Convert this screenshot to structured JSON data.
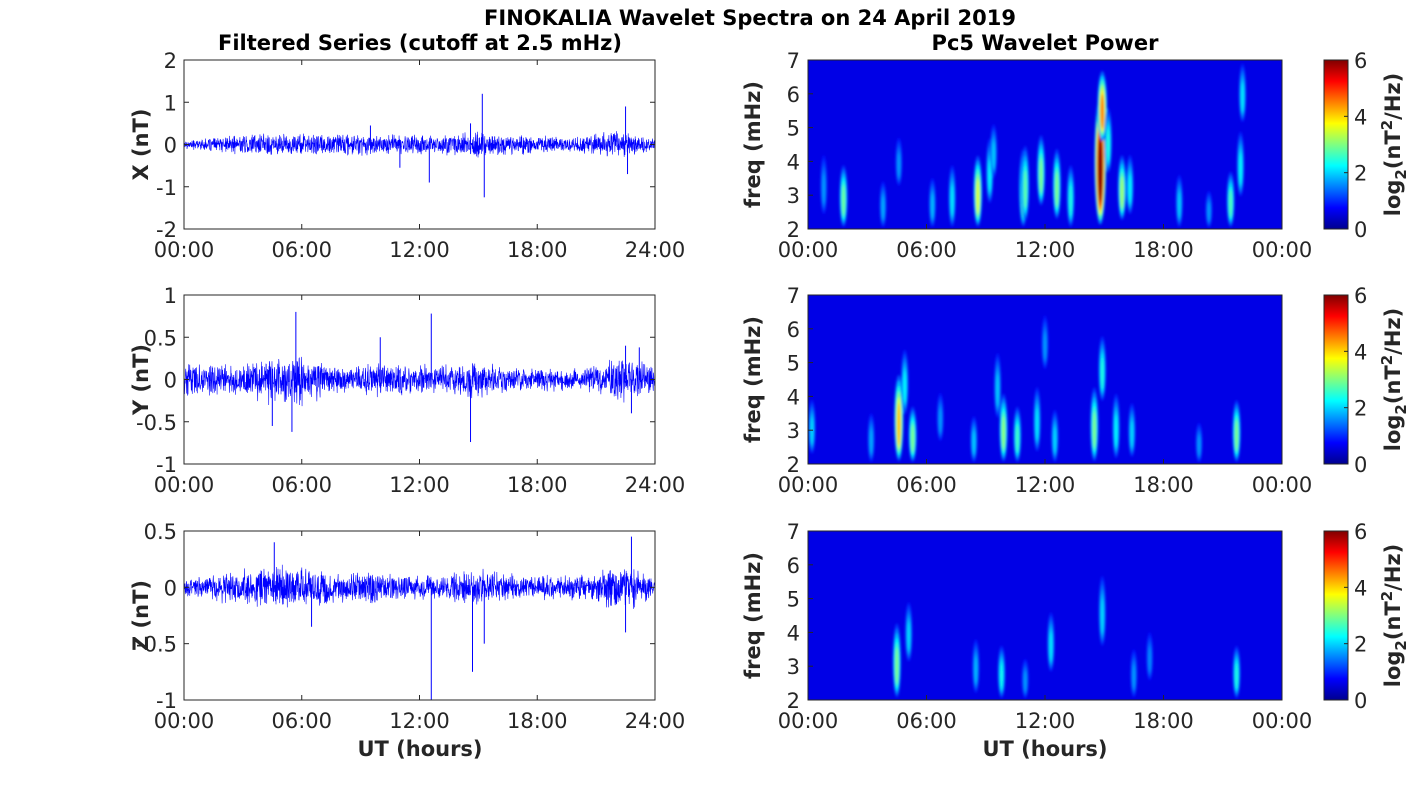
{
  "figure": {
    "title": "FINOKALIA Wavelet Spectra on 24 April 2019",
    "left_title": "Filtered Series (cutoff at 2.5 mHz)",
    "right_title": "Pc5 Wavelet Power",
    "xlabel": "UT (hours)"
  },
  "chart_data": [
    {
      "type": "line",
      "panel": "X",
      "ylabel": "X (nT)",
      "xlim": [
        0,
        24
      ],
      "ylim": [
        -2,
        2
      ],
      "x_ticks": [
        "00:00",
        "06:00",
        "12:00",
        "18:00",
        "24:00"
      ],
      "y_ticks": [
        "-2",
        "-1",
        "0",
        "1",
        "2"
      ],
      "y_tick_values": [
        -2,
        -1,
        0,
        1,
        2
      ],
      "color": "#0000ff",
      "envelope": [
        [
          0,
          0.12
        ],
        [
          1,
          0.15
        ],
        [
          2,
          0.2
        ],
        [
          3,
          0.28
        ],
        [
          4,
          0.3
        ],
        [
          5,
          0.3
        ],
        [
          6,
          0.3
        ],
        [
          7,
          0.28
        ],
        [
          8,
          0.3
        ],
        [
          9,
          0.3
        ],
        [
          10,
          0.28
        ],
        [
          11,
          0.26
        ],
        [
          12,
          0.25
        ],
        [
          13,
          0.25
        ],
        [
          14,
          0.3
        ],
        [
          15,
          0.35
        ],
        [
          16,
          0.3
        ],
        [
          17,
          0.25
        ],
        [
          18,
          0.22
        ],
        [
          19,
          0.2
        ],
        [
          20,
          0.22
        ],
        [
          21,
          0.28
        ],
        [
          22,
          0.35
        ],
        [
          23,
          0.3
        ],
        [
          24,
          0.15
        ]
      ],
      "spikes": [
        [
          15.2,
          1.2
        ],
        [
          15.3,
          -1.25
        ],
        [
          12.5,
          -0.9
        ],
        [
          22.5,
          0.9
        ],
        [
          22.6,
          -0.7
        ],
        [
          14.6,
          0.5
        ],
        [
          11.0,
          -0.55
        ],
        [
          9.5,
          0.45
        ]
      ]
    },
    {
      "type": "line",
      "panel": "Y",
      "ylabel": "Y (nT)",
      "xlim": [
        0,
        24
      ],
      "ylim": [
        -1,
        1
      ],
      "x_ticks": [
        "00:00",
        "06:00",
        "12:00",
        "18:00",
        "24:00"
      ],
      "y_ticks": [
        "-1",
        "-0.5",
        "0",
        "0.5",
        "1"
      ],
      "y_tick_values": [
        -1,
        -0.5,
        0,
        0.5,
        1
      ],
      "color": "#0000ff",
      "envelope": [
        [
          0,
          0.2
        ],
        [
          1,
          0.2
        ],
        [
          2,
          0.2
        ],
        [
          3,
          0.2
        ],
        [
          4,
          0.3
        ],
        [
          5,
          0.4
        ],
        [
          6,
          0.35
        ],
        [
          7,
          0.25
        ],
        [
          8,
          0.18
        ],
        [
          9,
          0.2
        ],
        [
          10,
          0.25
        ],
        [
          11,
          0.22
        ],
        [
          12,
          0.2
        ],
        [
          13,
          0.18
        ],
        [
          14,
          0.2
        ],
        [
          15,
          0.25
        ],
        [
          16,
          0.2
        ],
        [
          17,
          0.15
        ],
        [
          18,
          0.15
        ],
        [
          19,
          0.15
        ],
        [
          20,
          0.15
        ],
        [
          21,
          0.18
        ],
        [
          22,
          0.3
        ],
        [
          23,
          0.25
        ],
        [
          24,
          0.15
        ]
      ],
      "spikes": [
        [
          5.7,
          0.8
        ],
        [
          12.6,
          0.78
        ],
        [
          14.6,
          -0.74
        ],
        [
          5.5,
          -0.62
        ],
        [
          4.5,
          -0.55
        ],
        [
          10.0,
          0.5
        ],
        [
          22.5,
          0.4
        ],
        [
          23.2,
          0.38
        ],
        [
          22.8,
          -0.4
        ]
      ]
    },
    {
      "type": "line",
      "panel": "Z",
      "ylabel": "Z (nT)",
      "xlim": [
        0,
        24
      ],
      "ylim": [
        -1,
        0.5
      ],
      "x_ticks": [
        "00:00",
        "06:00",
        "12:00",
        "18:00",
        "24:00"
      ],
      "y_ticks": [
        "-1",
        "-0.5",
        "0",
        "0.5"
      ],
      "y_tick_values": [
        -1,
        -0.5,
        0,
        0.5
      ],
      "color": "#0000ff",
      "envelope": [
        [
          0,
          0.08
        ],
        [
          1,
          0.1
        ],
        [
          2,
          0.15
        ],
        [
          3,
          0.18
        ],
        [
          4,
          0.2
        ],
        [
          5,
          0.22
        ],
        [
          6,
          0.2
        ],
        [
          7,
          0.18
        ],
        [
          8,
          0.15
        ],
        [
          9,
          0.15
        ],
        [
          10,
          0.15
        ],
        [
          11,
          0.12
        ],
        [
          12,
          0.12
        ],
        [
          13,
          0.12
        ],
        [
          14,
          0.15
        ],
        [
          15,
          0.18
        ],
        [
          16,
          0.15
        ],
        [
          17,
          0.12
        ],
        [
          18,
          0.12
        ],
        [
          19,
          0.12
        ],
        [
          20,
          0.12
        ],
        [
          21,
          0.15
        ],
        [
          22,
          0.25
        ],
        [
          23,
          0.2
        ],
        [
          24,
          0.1
        ]
      ],
      "spikes": [
        [
          12.6,
          -1.05
        ],
        [
          14.7,
          -0.75
        ],
        [
          22.8,
          0.45
        ],
        [
          4.6,
          0.4
        ],
        [
          15.3,
          -0.5
        ],
        [
          6.5,
          -0.35
        ],
        [
          22.5,
          -0.4
        ]
      ]
    },
    {
      "type": "heatmap",
      "panel": "X-wavelet",
      "ylabel": "freq (mHz)",
      "cbar_label": "log2(nT2/Hz)",
      "xlim": [
        0,
        24
      ],
      "ylim": [
        2,
        7
      ],
      "clim": [
        0,
        6
      ],
      "x_ticks": [
        "00:00",
        "06:00",
        "12:00",
        "18:00",
        "00:00"
      ],
      "y_ticks": [
        "2",
        "3",
        "4",
        "5",
        "6",
        "7"
      ],
      "y_tick_values": [
        2,
        3,
        4,
        5,
        6,
        7
      ],
      "cbar_ticks": [
        "0",
        "2",
        "4",
        "6"
      ],
      "blobs": [
        [
          1.8,
          2.6,
          2.3,
          1.4
        ],
        [
          8.6,
          2.5,
          3.0,
          1.8
        ],
        [
          10.9,
          2.6,
          2.7,
          1.9
        ],
        [
          11.0,
          3.2,
          2.2,
          1.4
        ],
        [
          11.8,
          3.6,
          2.4,
          1.3
        ],
        [
          12.6,
          3.2,
          2.4,
          1.3
        ],
        [
          14.8,
          3.0,
          6.0,
          3.2
        ],
        [
          14.9,
          5.5,
          4.0,
          1.3
        ],
        [
          15.2,
          4.5,
          1.8,
          1.2
        ],
        [
          15.9,
          3.1,
          2.6,
          1.2
        ],
        [
          16.3,
          3.2,
          1.6,
          1.1
        ],
        [
          18.8,
          2.7,
          1.3,
          1.0
        ],
        [
          21.4,
          2.5,
          2.1,
          1.3
        ],
        [
          21.9,
          3.8,
          1.6,
          1.2
        ],
        [
          22.0,
          6.0,
          1.5,
          1.2
        ],
        [
          6.3,
          2.6,
          1.2,
          1.0
        ],
        [
          7.3,
          2.8,
          1.5,
          1.2
        ],
        [
          9.2,
          3.6,
          1.6,
          1.2
        ],
        [
          9.4,
          4.2,
          1.3,
          1.0
        ],
        [
          13.3,
          2.8,
          1.8,
          1.2
        ],
        [
          3.8,
          2.5,
          1.1,
          1.0
        ],
        [
          0.8,
          3.2,
          1.0,
          1.1
        ],
        [
          20.3,
          2.3,
          1.0,
          0.9
        ],
        [
          4.6,
          3.9,
          1.0,
          0.9
        ]
      ]
    },
    {
      "type": "heatmap",
      "panel": "Y-wavelet",
      "ylabel": "freq (mHz)",
      "cbar_label": "log2(nT2/Hz)",
      "xlim": [
        0,
        24
      ],
      "ylim": [
        2,
        7
      ],
      "clim": [
        0,
        6
      ],
      "x_ticks": [
        "00:00",
        "06:00",
        "12:00",
        "18:00",
        "00:00"
      ],
      "y_ticks": [
        "2",
        "3",
        "4",
        "5",
        "6",
        "7"
      ],
      "y_tick_values": [
        2,
        3,
        4,
        5,
        6,
        7
      ],
      "cbar_ticks": [
        "0",
        "2",
        "4",
        "6"
      ],
      "blobs": [
        [
          4.6,
          3.0,
          3.6,
          1.8
        ],
        [
          5.3,
          2.5,
          2.4,
          1.3
        ],
        [
          4.9,
          4.3,
          1.6,
          1.2
        ],
        [
          9.9,
          2.6,
          2.5,
          1.6
        ],
        [
          10.6,
          2.5,
          2.0,
          1.3
        ],
        [
          11.6,
          3.2,
          1.5,
          1.2
        ],
        [
          12.5,
          2.6,
          1.4,
          1.1
        ],
        [
          14.5,
          2.9,
          2.4,
          1.5
        ],
        [
          14.9,
          4.7,
          1.8,
          1.2
        ],
        [
          15.6,
          3.0,
          1.6,
          1.2
        ],
        [
          16.4,
          2.9,
          1.4,
          1.0
        ],
        [
          21.7,
          2.6,
          2.4,
          1.4
        ],
        [
          8.4,
          2.5,
          1.3,
          1.0
        ],
        [
          3.2,
          2.6,
          1.1,
          1.0
        ],
        [
          0.2,
          3.0,
          1.4,
          1.0
        ],
        [
          9.6,
          4.2,
          1.3,
          1.2
        ],
        [
          6.7,
          3.3,
          1.0,
          0.9
        ],
        [
          12.0,
          5.5,
          1.0,
          1.0
        ],
        [
          19.8,
          2.4,
          1.0,
          0.9
        ]
      ]
    },
    {
      "type": "heatmap",
      "panel": "Z-wavelet",
      "ylabel": "freq (mHz)",
      "cbar_label": "log2(nT2/Hz)",
      "xlim": [
        0,
        24
      ],
      "ylim": [
        2,
        7
      ],
      "clim": [
        0,
        6
      ],
      "x_ticks": [
        "00:00",
        "06:00",
        "12:00",
        "18:00",
        "00:00"
      ],
      "y_ticks": [
        "2",
        "3",
        "4",
        "5",
        "6",
        "7"
      ],
      "y_tick_values": [
        2,
        3,
        4,
        5,
        6,
        7
      ],
      "cbar_ticks": [
        "0",
        "2",
        "4",
        "6"
      ],
      "blobs": [
        [
          4.5,
          2.9,
          2.4,
          1.5
        ],
        [
          5.1,
          3.9,
          1.4,
          1.1
        ],
        [
          9.8,
          2.5,
          1.7,
          1.2
        ],
        [
          12.3,
          3.6,
          1.5,
          1.1
        ],
        [
          14.9,
          4.5,
          1.4,
          1.3
        ],
        [
          21.7,
          2.5,
          1.8,
          1.2
        ],
        [
          8.5,
          2.9,
          1.2,
          1.0
        ],
        [
          16.5,
          2.7,
          1.0,
          0.9
        ],
        [
          11.0,
          2.4,
          1.0,
          0.9
        ],
        [
          17.3,
          3.2,
          0.9,
          0.9
        ]
      ]
    }
  ]
}
